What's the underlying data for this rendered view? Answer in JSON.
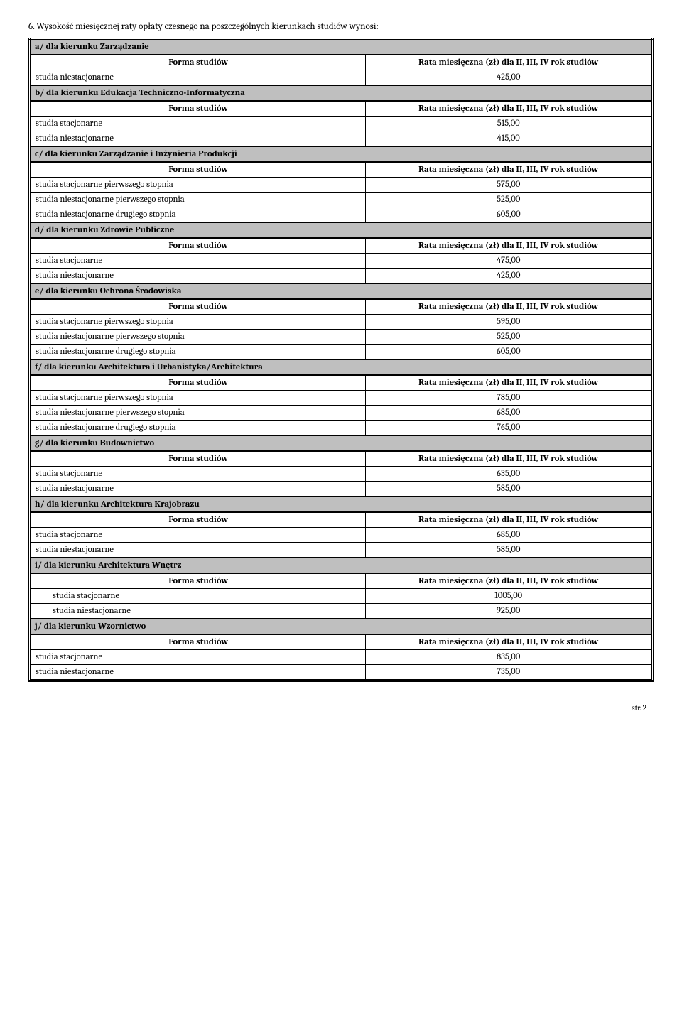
{
  "intro_number": "6.",
  "intro_text": "Wysokość miesięcznej raty opłaty czesnego na poszczególnych kierunkach studiów wynosi:",
  "col_forma": "Forma studiów",
  "col_rata": "Rata miesięczna (zł) dla II, III, IV rok studiów",
  "lbl_stacjonarne": "studia stacjonarne",
  "lbl_niestacjonarne": "studia niestacjonarne",
  "lbl_stac_pierw": "studia stacjonarne pierwszego stopnia",
  "lbl_niestac_pierw": "studia niestacjonarne pierwszego stopnia",
  "lbl_niestac_drug": "studia niestacjonarne drugiego stopnia",
  "sections": {
    "a": {
      "title": "a/   dla kierunku Zarządzanie",
      "rows": [
        [
          "studia niestacjonarne",
          "425,00"
        ]
      ]
    },
    "b": {
      "title": "b/   dla kierunku Edukacja Techniczno-Informatyczna",
      "rows": [
        [
          "studia stacjonarne",
          "515,00"
        ],
        [
          "studia niestacjonarne",
          "415,00"
        ]
      ]
    },
    "c": {
      "title": "c/   dla kierunku Zarządzanie i Inżynieria Produkcji",
      "rows": [
        [
          "studia stacjonarne pierwszego stopnia",
          "575,00"
        ],
        [
          "studia niestacjonarne pierwszego stopnia",
          "525,00"
        ],
        [
          "studia niestacjonarne drugiego stopnia",
          "605,00"
        ]
      ]
    },
    "d": {
      "title": "d/   dla kierunku Zdrowie Publiczne",
      "rows": [
        [
          "studia stacjonarne",
          "475,00"
        ],
        [
          "studia niestacjonarne",
          "425,00"
        ]
      ]
    },
    "e": {
      "title": "e/   dla kierunku Ochrona Środowiska",
      "rows": [
        [
          "studia stacjonarne pierwszego stopnia",
          "595,00"
        ],
        [
          "studia niestacjonarne pierwszego stopnia",
          "525,00"
        ],
        [
          "studia niestacjonarne drugiego stopnia",
          "605,00"
        ]
      ]
    },
    "f": {
      "title": "f/   dla kierunku Architektura i Urbanistyka/Architektura",
      "rows": [
        [
          "studia stacjonarne pierwszego stopnia",
          "785,00"
        ],
        [
          "studia niestacjonarne pierwszego stopnia",
          "685,00"
        ],
        [
          "studia niestacjonarne drugiego stopnia",
          "765,00"
        ]
      ]
    },
    "g": {
      "title": "g/   dla kierunku Budownictwo",
      "rows": [
        [
          "studia stacjonarne",
          "635,00"
        ],
        [
          "studia niestacjonarne",
          "585,00"
        ]
      ]
    },
    "h": {
      "title": "h/   dla kierunku Architektura Krajobrazu",
      "rows": [
        [
          "studia stacjonarne",
          "685,00"
        ],
        [
          "studia niestacjonarne",
          "585,00"
        ]
      ]
    },
    "i": {
      "title": "i/   dla kierunku Architektura Wnętrz",
      "rows": [
        [
          "studia stacjonarne",
          "1005,00"
        ],
        [
          "studia niestacjonarne",
          "925,00"
        ]
      ],
      "indent": true
    },
    "j": {
      "title": "j/   dla kierunku Wzornictwo",
      "rows": [
        [
          "studia stacjonarne",
          "835,00"
        ],
        [
          "studia niestacjonarne",
          "735,00"
        ]
      ]
    }
  },
  "footer": "str. 2"
}
